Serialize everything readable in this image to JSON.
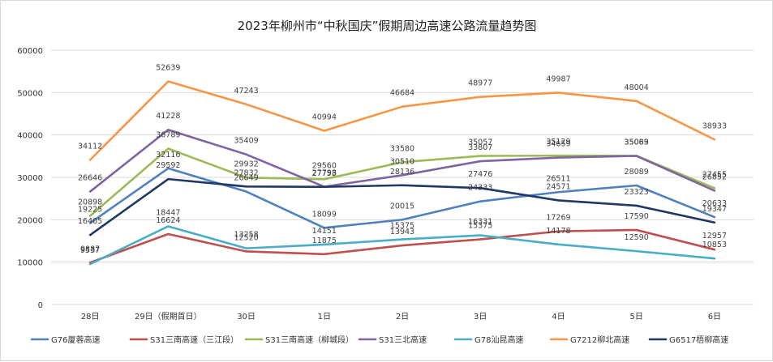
{
  "chart_data": {
    "type": "line",
    "title": "2023年柳州市“中秋国庆”假期周边高速公路流量趋势图",
    "categories": [
      "28日",
      "29日（假期首日）",
      "30日",
      "1日",
      "2日",
      "3日",
      "4日",
      "5日",
      "6日"
    ],
    "ylim": [
      0,
      60000
    ],
    "yticks": [
      "0",
      "10000",
      "20000",
      "30000",
      "40000",
      "50000",
      "60000"
    ],
    "grid": true,
    "legend_position": "bottom",
    "series": [
      {
        "name": "G76厦蓉高速",
        "color": "#4f81bd",
        "values": [
          19225,
          32116,
          26649,
          18099,
          20015,
          24333,
          26511,
          28089,
          20633
        ]
      },
      {
        "name": "S31三南高速（三江段）",
        "color": "#c0504d",
        "values": [
          9887,
          16624,
          12520,
          11875,
          13943,
          15375,
          17269,
          17590,
          12957
        ]
      },
      {
        "name": "S31三南高速（柳城段）",
        "color": "#9bbb59",
        "values": [
          20898,
          36789,
          29932,
          29560,
          33580,
          35057,
          35129,
          35089,
          27455
        ]
      },
      {
        "name": "S31三北高速",
        "color": "#8064a2",
        "values": [
          26646,
          41228,
          35409,
          27798,
          30510,
          33807,
          34659,
          35063,
          26852
        ]
      },
      {
        "name": "G78汕昆高速",
        "color": "#4bacc6",
        "values": [
          9537,
          18447,
          13258,
          14151,
          15375,
          16331,
          14178,
          12590,
          10853
        ]
      },
      {
        "name": "G7212柳北高速",
        "color": "#f79646",
        "values": [
          34112,
          52639,
          47243,
          40994,
          46684,
          48977,
          49987,
          48004,
          38933
        ]
      },
      {
        "name": "G6517梧柳高速",
        "color": "#1f3864",
        "values": [
          16405,
          29592,
          27832,
          27753,
          28136,
          27476,
          24571,
          23323,
          19347
        ]
      }
    ]
  }
}
